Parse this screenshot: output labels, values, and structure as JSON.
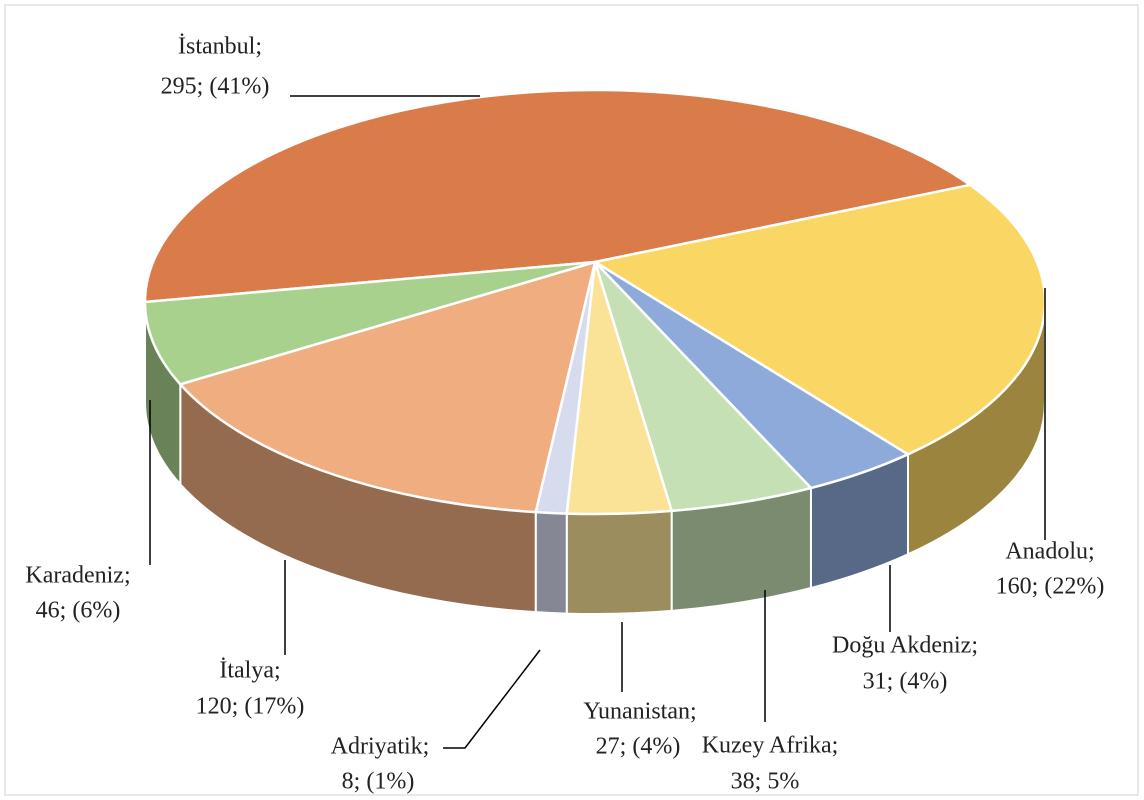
{
  "chart_data": {
    "type": "pie",
    "categories": [
      "İstanbul;",
      "Anadolu;",
      "Doğu Akdeniz;",
      "Kuzey Afrika;",
      "Yunanistan;",
      "Adriyatik;",
      "İtalya;",
      "Karadeniz;"
    ],
    "values": [
      295,
      160,
      31,
      38,
      27,
      8,
      120,
      46
    ],
    "value_labels": [
      "295; (41%)",
      "160; (22%)",
      "31; (4%)",
      "38; 5%",
      "27; (4%)",
      "8; (1%)",
      "120; (17%)",
      "46; (6%)"
    ],
    "colors": [
      "#d97c4a",
      "#fad764",
      "#8eaadb",
      "#c5e0b4",
      "#fae396",
      "#d6dcee",
      "#f0ad80",
      "#a9d18e"
    ]
  }
}
